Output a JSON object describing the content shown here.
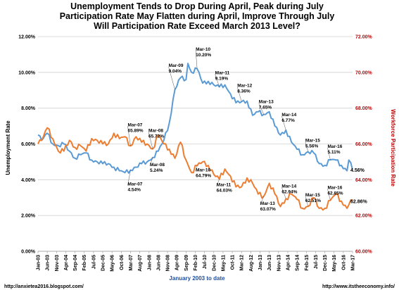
{
  "chart_data": {
    "type": "line",
    "title_lines": [
      "Unemployment Tends to Drop During April, Peak during July",
      "Participation Rate May Flatten during April, Improve Through July",
      "Will Participation Rate Exceed March 2013 Level?"
    ],
    "xlabel": "January 2003 to date",
    "ylabel_left": "Unemployment Rate",
    "ylabel_right": "Workforce Participation Rate",
    "left_axis": {
      "min": 0,
      "max": 12,
      "step": 2,
      "tick_labels": [
        "0.00%",
        "2.00%",
        "4.00%",
        "6.00%",
        "8.00%",
        "10.00%",
        "12.00%"
      ]
    },
    "right_axis": {
      "min": 60,
      "max": 72,
      "step": 2,
      "tick_labels": [
        "60.00%",
        "62.00%",
        "64.00%",
        "66.00%",
        "68.00%",
        "70.00%",
        "72.00%"
      ]
    },
    "x_tick_labels": [
      "Jan-03",
      "Jun-03",
      "Nov-03",
      "Apr-04",
      "Sep-04",
      "Feb-05",
      "Jul-05",
      "Dec-05",
      "May-06",
      "Oct-06",
      "Mar-07",
      "Aug-07",
      "Jan-08",
      "Jun-08",
      "Nov-08",
      "Apr-09",
      "Sep-09",
      "Feb-10",
      "Jul-10",
      "Dec-10",
      "May-11",
      "Oct-11",
      "Mar-12",
      "Aug-12",
      "Jan-13",
      "Jun-13",
      "Nov-13",
      "Apr-14",
      "Sep-14",
      "Feb-15",
      "Jul-15",
      "Dec-15",
      "May-16",
      "Oct-16",
      "Mar-17"
    ],
    "grid": true,
    "series": [
      {
        "name": "Unemployment Rate",
        "axis": "left",
        "color": "#5b9bd5",
        "anchors": [
          [
            "2003-01",
            6.5
          ],
          [
            "2003-03",
            6.2
          ],
          [
            "2003-06",
            6.6
          ],
          [
            "2003-09",
            6.0
          ],
          [
            "2003-12",
            5.9
          ],
          [
            "2004-03",
            6.0
          ],
          [
            "2004-06",
            5.6
          ],
          [
            "2004-09",
            5.2
          ],
          [
            "2004-12",
            5.4
          ],
          [
            "2005-03",
            5.5
          ],
          [
            "2005-06",
            5.1
          ],
          [
            "2005-09",
            5.0
          ],
          [
            "2005-12",
            4.9
          ],
          [
            "2006-03",
            4.9
          ],
          [
            "2006-06",
            4.7
          ],
          [
            "2006-09",
            4.5
          ],
          [
            "2006-12",
            4.4
          ],
          [
            "2007-03",
            4.54
          ],
          [
            "2007-06",
            4.7
          ],
          [
            "2007-09",
            4.9
          ],
          [
            "2007-12",
            5.0
          ],
          [
            "2008-03",
            5.24
          ],
          [
            "2008-06",
            5.6
          ],
          [
            "2008-09",
            6.2
          ],
          [
            "2008-12",
            7.2
          ],
          [
            "2009-03",
            9.04
          ],
          [
            "2009-06",
            9.7
          ],
          [
            "2009-09",
            9.6
          ],
          [
            "2009-10",
            10.5
          ],
          [
            "2009-12",
            10.0
          ],
          [
            "2010-03",
            10.2
          ],
          [
            "2010-06",
            9.4
          ],
          [
            "2010-09",
            9.5
          ],
          [
            "2010-12",
            9.3
          ],
          [
            "2011-03",
            9.19
          ],
          [
            "2011-06",
            9.3
          ],
          [
            "2011-09",
            8.8
          ],
          [
            "2011-12",
            8.3
          ],
          [
            "2012-03",
            8.36
          ],
          [
            "2012-06",
            8.4
          ],
          [
            "2012-09",
            7.6
          ],
          [
            "2012-12",
            7.8
          ],
          [
            "2013-03",
            7.65
          ],
          [
            "2013-06",
            7.8
          ],
          [
            "2013-09",
            7.0
          ],
          [
            "2013-12",
            6.5
          ],
          [
            "2014-03",
            6.77
          ],
          [
            "2014-06",
            6.1
          ],
          [
            "2014-09",
            5.7
          ],
          [
            "2014-12",
            5.4
          ],
          [
            "2015-03",
            5.56
          ],
          [
            "2015-06",
            5.5
          ],
          [
            "2015-09",
            4.9
          ],
          [
            "2015-12",
            4.8
          ],
          [
            "2016-03",
            5.11
          ],
          [
            "2016-06",
            5.1
          ],
          [
            "2016-09",
            4.8
          ],
          [
            "2016-12",
            4.5
          ],
          [
            "2017-01",
            5.1
          ],
          [
            "2017-03",
            4.56
          ]
        ],
        "end_label": "4.56%"
      },
      {
        "name": "Workforce Participation Rate",
        "axis": "right",
        "color": "#ed7d31",
        "anchors": [
          [
            "2003-01",
            66.0
          ],
          [
            "2003-03",
            66.2
          ],
          [
            "2003-06",
            66.9
          ],
          [
            "2003-09",
            66.3
          ],
          [
            "2003-12",
            65.6
          ],
          [
            "2004-03",
            65.6
          ],
          [
            "2004-06",
            66.2
          ],
          [
            "2004-09",
            65.8
          ],
          [
            "2004-12",
            65.9
          ],
          [
            "2005-03",
            65.6
          ],
          [
            "2005-06",
            66.3
          ],
          [
            "2005-09",
            66.2
          ],
          [
            "2005-12",
            66.0
          ],
          [
            "2006-03",
            66.0
          ],
          [
            "2006-06",
            66.6
          ],
          [
            "2006-09",
            66.3
          ],
          [
            "2006-12",
            66.4
          ],
          [
            "2007-03",
            65.89
          ],
          [
            "2007-06",
            66.4
          ],
          [
            "2007-09",
            66.1
          ],
          [
            "2007-12",
            66.0
          ],
          [
            "2008-03",
            65.72
          ],
          [
            "2008-06",
            66.5
          ],
          [
            "2008-09",
            66.0
          ],
          [
            "2008-12",
            65.7
          ],
          [
            "2009-03",
            65.2
          ],
          [
            "2009-06",
            66.1
          ],
          [
            "2009-09",
            65.1
          ],
          [
            "2009-12",
            64.4
          ],
          [
            "2010-03",
            64.79
          ],
          [
            "2010-06",
            65.0
          ],
          [
            "2010-09",
            64.8
          ],
          [
            "2010-12",
            64.3
          ],
          [
            "2011-03",
            64.03
          ],
          [
            "2011-06",
            64.6
          ],
          [
            "2011-09",
            64.2
          ],
          [
            "2011-12",
            63.6
          ],
          [
            "2012-03",
            63.6
          ],
          [
            "2012-06",
            64.1
          ],
          [
            "2012-09",
            63.8
          ],
          [
            "2012-12",
            63.2
          ],
          [
            "2013-03",
            63.07
          ],
          [
            "2013-06",
            63.8
          ],
          [
            "2013-09",
            63.2
          ],
          [
            "2013-12",
            62.5
          ],
          [
            "2014-03",
            62.94
          ],
          [
            "2014-06",
            63.2
          ],
          [
            "2014-09",
            62.9
          ],
          [
            "2014-12",
            62.4
          ],
          [
            "2015-03",
            62.51
          ],
          [
            "2015-06",
            63.0
          ],
          [
            "2015-09",
            62.4
          ],
          [
            "2015-12",
            62.4
          ],
          [
            "2016-03",
            62.85
          ],
          [
            "2016-06",
            63.2
          ],
          [
            "2016-09",
            62.8
          ],
          [
            "2016-12",
            62.4
          ],
          [
            "2017-01",
            62.6
          ],
          [
            "2017-03",
            62.86
          ]
        ],
        "end_label": "62.86%"
      }
    ],
    "annotations_unemployment": [
      {
        "month": "Mar-07",
        "value": "4.54%"
      },
      {
        "month": "Mar-08",
        "value": "5.24%"
      },
      {
        "month": "Mar-09",
        "value": "9.04%"
      },
      {
        "month": "Mar-10",
        "value": "10.20%"
      },
      {
        "month": "Mar-11",
        "value": "9.19%"
      },
      {
        "month": "Mar-12",
        "value": "8.36%"
      },
      {
        "month": "Mar-13",
        "value": "7.65%"
      },
      {
        "month": "Mar-14",
        "value": "6.77%"
      },
      {
        "month": "Mar-15",
        "value": "5.56%"
      },
      {
        "month": "Mar-16",
        "value": "5.11%"
      }
    ],
    "annotations_participation": [
      {
        "month": "Mar-07",
        "value": "65.89%"
      },
      {
        "month": "Mar-08",
        "value": "65.72%"
      },
      {
        "month": "Mar-10",
        "value": "64.79%"
      },
      {
        "month": "Mar-11",
        "value": "64.03%"
      },
      {
        "month": "Mar-13",
        "value": "63.07%"
      },
      {
        "month": "Mar-14",
        "value": "62.94%"
      },
      {
        "month": "Mar-15",
        "value": "62.51%"
      },
      {
        "month": "Mar-16",
        "value": "62.85%"
      }
    ],
    "footer_left": "http://anxietea2016.blogspot.com/",
    "footer_right": "http://www.itstheeconomy.info/"
  }
}
